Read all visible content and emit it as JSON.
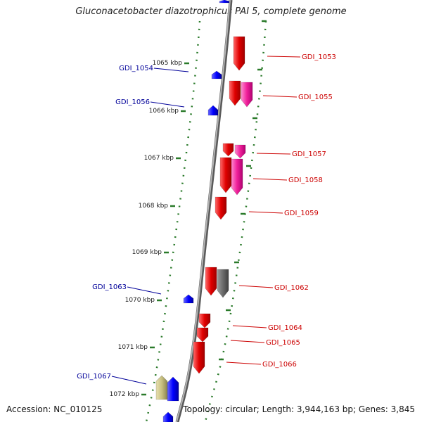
{
  "title": "Gluconacetobacter diazotrophicus PAI 5, complete genome",
  "footer": {
    "accession": "Accession: NC_010125",
    "summary": "Topology: circular; Length: 3,944,163 bp; Genes: 3,845"
  },
  "colors": {
    "backbone": "#8c8c8c",
    "ticks": "#2a7a2a",
    "forward_gene": "#e00000",
    "forward_gene_alt": "#f0209a",
    "forward_gene_grey": "#6a6a6a",
    "reverse_gene": "#0000ff",
    "reverse_gene_alt": "#c8c080",
    "forward_label": "#cc0000",
    "reverse_label": "#000099"
  },
  "scale_labels": [
    "1065 kbp",
    "1066 kbp",
    "1067 kbp",
    "1068 kbp",
    "1069 kbp",
    "1070 kbp",
    "1071 kbp",
    "1072 kbp"
  ],
  "forward_labels": [
    "GDI_1053",
    "GDI_1055",
    "GDI_1057",
    "GDI_1058",
    "GDI_1059",
    "GDI_1062",
    "GDI_1064",
    "GDI_1065",
    "GDI_1066"
  ],
  "reverse_labels": [
    "GDI_1054",
    "GDI_1056",
    "GDI_1063",
    "GDI_1067"
  ]
}
